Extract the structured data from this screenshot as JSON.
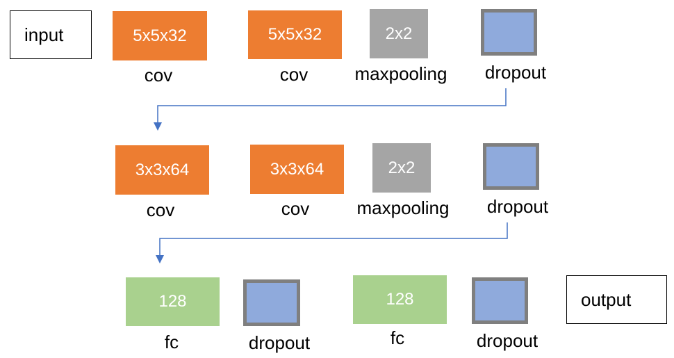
{
  "input_label": "input",
  "output_label": "output",
  "row1": {
    "conv1": {
      "text": "5x5x32",
      "label": "cov"
    },
    "conv2": {
      "text": "5x5x32",
      "label": "cov"
    },
    "pool": {
      "text": "2x2",
      "label": "maxpooling"
    },
    "dropout": {
      "label": "dropout"
    }
  },
  "row2": {
    "conv1": {
      "text": "3x3x64",
      "label": "cov"
    },
    "conv2": {
      "text": "3x3x64",
      "label": "cov"
    },
    "pool": {
      "text": "2x2",
      "label": "maxpooling"
    },
    "dropout": {
      "label": "dropout"
    }
  },
  "row3": {
    "fc1": {
      "text": "128",
      "label": "fc"
    },
    "dropout1": {
      "label": "dropout"
    },
    "fc2": {
      "text": "128",
      "label": "fc"
    },
    "dropout2": {
      "label": "dropout"
    }
  },
  "colors": {
    "conv": "#ED7D31",
    "pool": "#A5A5A5",
    "fc": "#A9D18E",
    "dropout": "#8FAADC",
    "dropout_border": "#7F7F7F",
    "arrow": "#4472C4"
  }
}
